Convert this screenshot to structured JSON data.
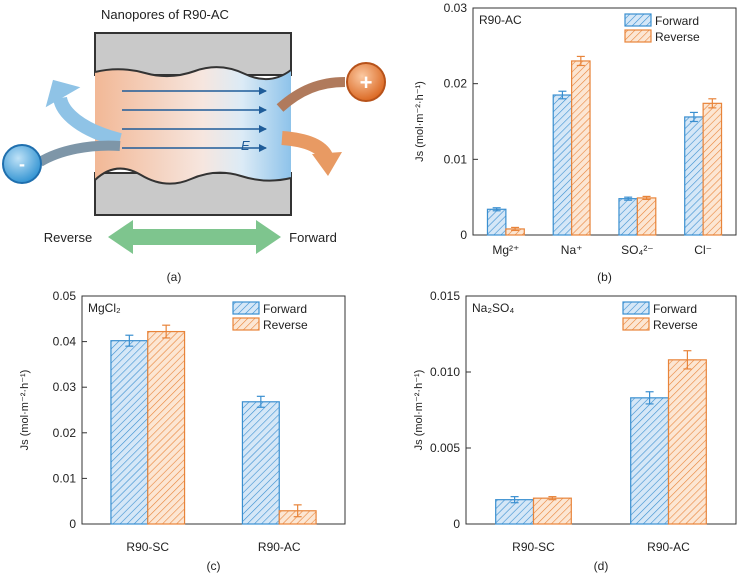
{
  "colors": {
    "forward": "#3a8fd0",
    "forward_fill": "#cfe3f5",
    "reverse": "#e8843a",
    "reverse_fill": "#fbe3cf",
    "arrow_green": "#7ec58e",
    "arrow_blue": "#8fc3e6",
    "arrow_orange": "#e89a63",
    "axis": "#333333"
  },
  "panel_a": {
    "title": "Nanopores of R90-AC",
    "field_label": "E",
    "reverse_label": "Reverse",
    "forward_label": "Forward",
    "minus_symbol": "-",
    "plus_symbol": "+",
    "caption": "(a)"
  },
  "chart_data": [
    {
      "id": "b",
      "type": "bar",
      "panel_label": "R90-AC",
      "caption": "(b)",
      "categories": [
        "Mg²⁺",
        "Na⁺",
        "SO₄²⁻",
        "Cl⁻"
      ],
      "series": [
        {
          "name": "Forward",
          "values": [
            0.0034,
            0.0185,
            0.0048,
            0.0156
          ],
          "errors": [
            0.0002,
            0.0005,
            0.0002,
            0.0006
          ]
        },
        {
          "name": "Reverse",
          "values": [
            0.0008,
            0.023,
            0.0049,
            0.0174
          ],
          "errors": [
            0.0002,
            0.0006,
            0.0002,
            0.0006
          ]
        }
      ],
      "ylabel": "Js (mol·m⁻²·h⁻¹)",
      "ylim": [
        0,
        0.03
      ],
      "yticks": [
        "0",
        "0.01",
        "0.02",
        "0.03"
      ],
      "legend": "top-right"
    },
    {
      "id": "c",
      "type": "bar",
      "panel_label": "MgCl₂",
      "caption": "(c)",
      "categories": [
        "R90-SC",
        "R90-AC"
      ],
      "series": [
        {
          "name": "Forward",
          "values": [
            0.0402,
            0.0268
          ],
          "errors": [
            0.0012,
            0.0012
          ]
        },
        {
          "name": "Reverse",
          "values": [
            0.0422,
            0.0029
          ],
          "errors": [
            0.0014,
            0.0013
          ]
        }
      ],
      "ylabel": "Js (mol·m⁻²·h⁻¹)",
      "ylim": [
        0,
        0.05
      ],
      "yticks": [
        "0",
        "0.01",
        "0.02",
        "0.03",
        "0.04",
        "0.05"
      ],
      "legend": "top-right"
    },
    {
      "id": "d",
      "type": "bar",
      "panel_label": "Na₂SO₄",
      "caption": "(d)",
      "categories": [
        "R90-SC",
        "R90-AC"
      ],
      "series": [
        {
          "name": "Forward",
          "values": [
            0.0016,
            0.0083
          ],
          "errors": [
            0.0002,
            0.0004
          ]
        },
        {
          "name": "Reverse",
          "values": [
            0.0017,
            0.0108
          ],
          "errors": [
            0.0001,
            0.0006
          ]
        }
      ],
      "ylabel": "Js (mol·m⁻²·h⁻¹)",
      "ylim": [
        0,
        0.015
      ],
      "yticks": [
        "0",
        "0.005",
        "0.010",
        "0.015"
      ],
      "legend": "top-right"
    }
  ]
}
